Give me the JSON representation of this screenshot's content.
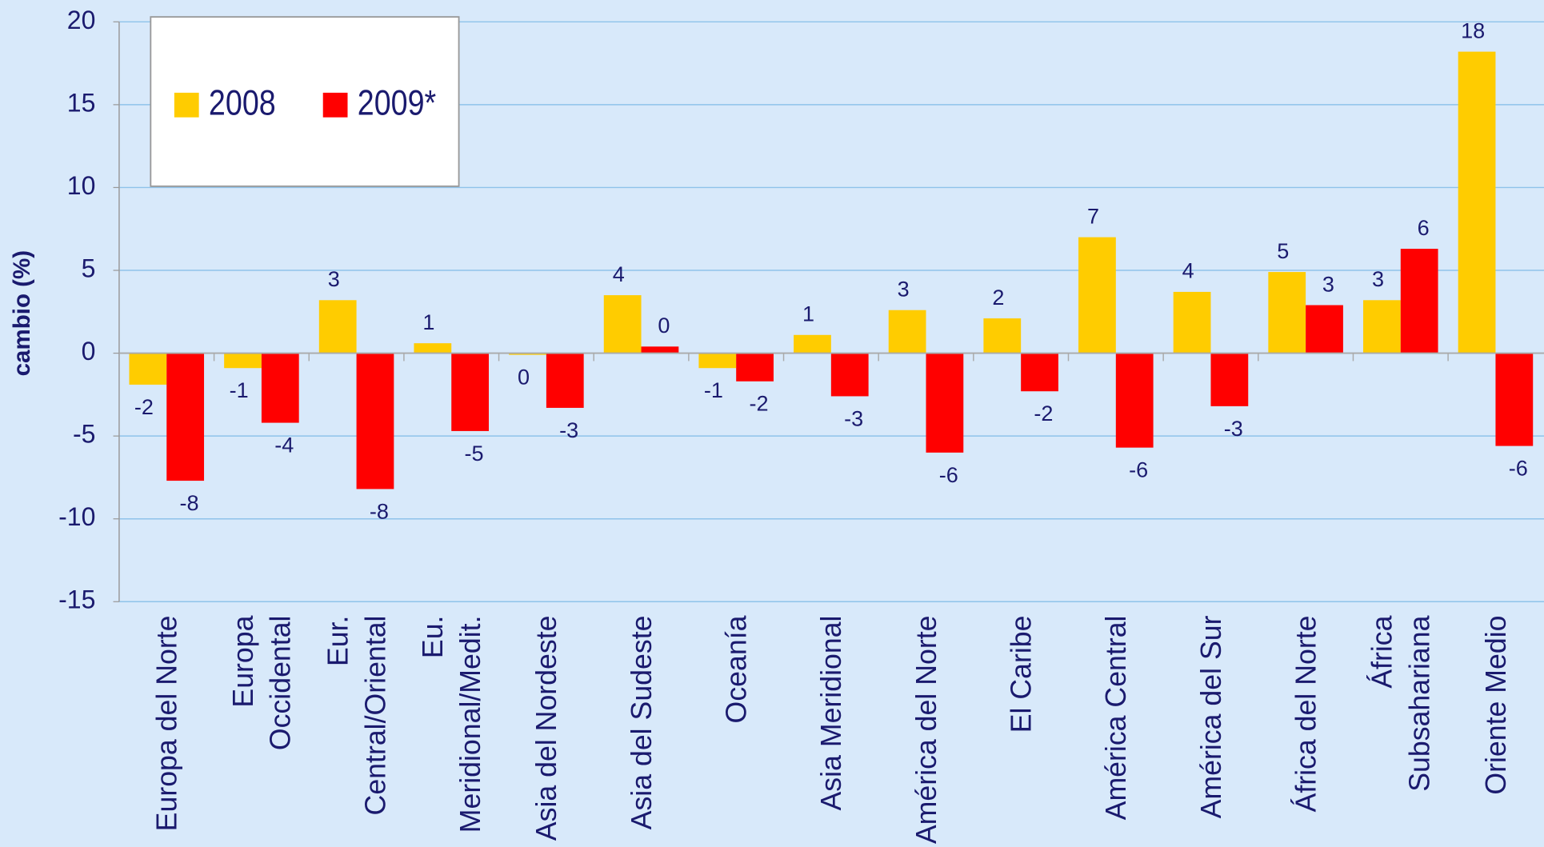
{
  "chart_data": {
    "type": "bar",
    "y_label": "cambio (%)",
    "categories": [
      "Europa del Norte",
      "Europa\nOccidental",
      "Eur.\nCentral/Oriental",
      "Eu.\nMeridional/Medit.",
      "Asia del Nordeste",
      "Asia del Sudeste",
      "Oceanía",
      "Asia Meridional",
      "América del Norte",
      "El Caribe",
      "América Central",
      "América del Sur",
      "África del Norte",
      "África\nSubsahariana",
      "Oriente Medio"
    ],
    "series": [
      {
        "name": "2008",
        "color": "#ffcc00",
        "values": [
          -1.9,
          -0.9,
          3.2,
          0.6,
          -0.1,
          3.5,
          -0.9,
          1.1,
          2.6,
          2.1,
          7.0,
          3.7,
          4.9,
          3.2,
          18.2
        ],
        "value_labels": [
          "-2",
          "-1",
          "3",
          "1",
          "0",
          "4",
          "-1",
          "1",
          "3",
          "2",
          "7",
          "4",
          "5",
          "3",
          "18"
        ]
      },
      {
        "name": "2009*",
        "color": "#ff0000",
        "values": [
          -7.7,
          -4.2,
          -8.2,
          -4.7,
          -3.3,
          0.4,
          -1.7,
          -2.6,
          -6.0,
          -2.3,
          -5.7,
          -3.2,
          2.9,
          6.3,
          -5.6
        ],
        "value_labels": [
          "-8",
          "-4",
          "-8",
          "-5",
          "-3",
          "0",
          "-2",
          "-3",
          "-6",
          "-2",
          "-6",
          "-3",
          "3",
          "6",
          "-6"
        ]
      }
    ],
    "ylim": [
      -15,
      20
    ],
    "yticks": [
      -15,
      -10,
      -5,
      0,
      5,
      10,
      15,
      20
    ],
    "grid": true,
    "legend": "upper left"
  }
}
